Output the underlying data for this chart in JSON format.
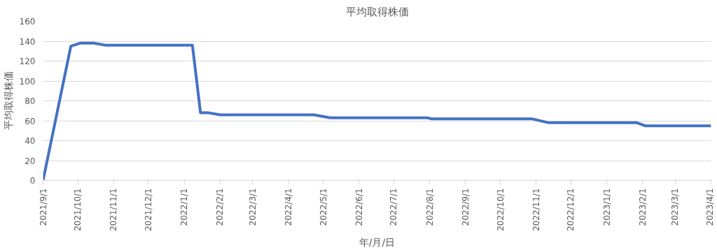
{
  "chart_data": {
    "type": "line",
    "title": "平均取得株価",
    "xlabel": "年/月/日",
    "ylabel": "平均取得株価",
    "x": [
      "2021-09-01",
      "2021-09-25",
      "2021-10-03",
      "2021-10-15",
      "2021-10-25",
      "2022-01-08",
      "2022-01-15",
      "2022-01-22",
      "2022-02-01",
      "2022-04-23",
      "2022-05-07",
      "2022-07-30",
      "2022-08-02",
      "2022-10-28",
      "2022-11-12",
      "2023-01-27",
      "2023-02-03",
      "2023-04-01"
    ],
    "series": [
      {
        "color": "#4472c4",
        "values": [
          0,
          135,
          138,
          138,
          136,
          136,
          68,
          68,
          66,
          66,
          63,
          63,
          62,
          62,
          58,
          58,
          55,
          55
        ]
      }
    ],
    "xlim": [
      "2021-09-01",
      "2023-04-01"
    ],
    "xticks": [
      {
        "value": "2021-09-01",
        "label": "2021/9/1"
      },
      {
        "value": "2021-10-01",
        "label": "2021/10/1"
      },
      {
        "value": "2021-11-01",
        "label": "2021/11/1"
      },
      {
        "value": "2021-12-01",
        "label": "2021/12/1"
      },
      {
        "value": "2022-01-01",
        "label": "2022/1/1"
      },
      {
        "value": "2022-02-01",
        "label": "2022/2/1"
      },
      {
        "value": "2022-03-01",
        "label": "2022/3/1"
      },
      {
        "value": "2022-04-01",
        "label": "2022/4/1"
      },
      {
        "value": "2022-05-01",
        "label": "2022/5/1"
      },
      {
        "value": "2022-06-01",
        "label": "2022/6/1"
      },
      {
        "value": "2022-07-01",
        "label": "2022/7/1"
      },
      {
        "value": "2022-08-01",
        "label": "2022/8/1"
      },
      {
        "value": "2022-09-01",
        "label": "2022/9/1"
      },
      {
        "value": "2022-10-01",
        "label": "2022/10/1"
      },
      {
        "value": "2022-11-01",
        "label": "2022/11/1"
      },
      {
        "value": "2022-12-01",
        "label": "2022/12/1"
      },
      {
        "value": "2023-01-01",
        "label": "2023/1/1"
      },
      {
        "value": "2023-02-01",
        "label": "2023/2/1"
      },
      {
        "value": "2023-03-01",
        "label": "2023/3/1"
      },
      {
        "value": "2023-04-01",
        "label": "2023/4/1"
      }
    ],
    "ylim": [
      0,
      160
    ],
    "yticks": [
      0,
      20,
      40,
      60,
      80,
      100,
      120,
      140,
      160
    ],
    "grid": "y",
    "marker": "none",
    "line_style": "solid"
  }
}
